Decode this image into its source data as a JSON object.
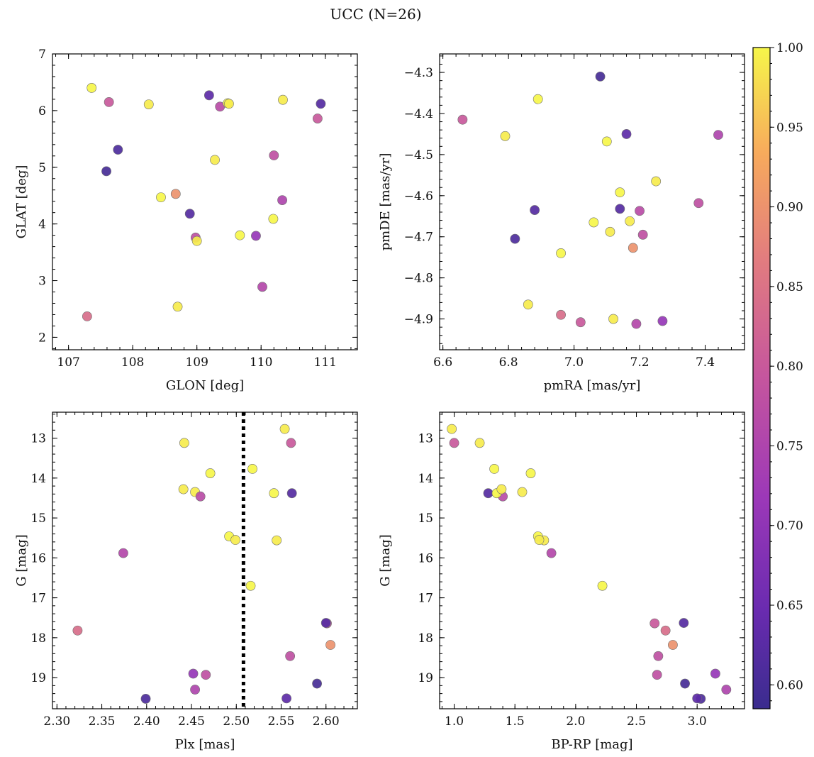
{
  "chart_data": {
    "title": "UCC (N=26)",
    "type": "scatter",
    "colorbar": {
      "range": [
        0.585,
        1.0
      ],
      "ticks": [
        0.6,
        0.65,
        0.7,
        0.75,
        0.8,
        0.85,
        0.9,
        0.95,
        1.0
      ],
      "tick_labels": [
        "0.60",
        "0.65",
        "0.70",
        "0.75",
        "0.80",
        "0.85",
        "0.90",
        "0.95",
        "1.00"
      ],
      "colormap": "plasma",
      "placement": "right"
    },
    "members": [
      {
        "glon": 107.36,
        "glat": 6.4,
        "pmra": 6.89,
        "pmde": -4.365,
        "plx": 2.518,
        "g": 13.77,
        "bprp": 1.33,
        "prob": 1.0
      },
      {
        "glon": 107.63,
        "glat": 6.15,
        "pmra": 6.66,
        "pmde": -4.415,
        "plx": 2.561,
        "g": 13.12,
        "bprp": 1.0,
        "prob": 0.8
      },
      {
        "glon": 107.59,
        "glat": 4.93,
        "pmra": 7.08,
        "pmde": -4.31,
        "plx": 2.59,
        "g": 19.15,
        "bprp": 2.9,
        "prob": 0.6
      },
      {
        "glon": 107.77,
        "glat": 5.31,
        "pmra": 6.82,
        "pmde": -4.705,
        "plx": 2.399,
        "g": 19.53,
        "bprp": 3.03,
        "prob": 0.61
      },
      {
        "glon": 107.29,
        "glat": 2.37,
        "pmra": 6.96,
        "pmde": -4.89,
        "plx": 2.323,
        "g": 17.82,
        "bprp": 2.74,
        "prob": 0.84
      },
      {
        "glon": 108.25,
        "glat": 6.11,
        "pmra": 6.79,
        "pmde": -4.455,
        "plx": 2.545,
        "g": 15.56,
        "bprp": 1.74,
        "prob": 0.99
      },
      {
        "glon": 108.44,
        "glat": 4.47,
        "pmra": 7.06,
        "pmde": -4.665,
        "plx": 2.492,
        "g": 15.46,
        "bprp": 1.69,
        "prob": 1.0
      },
      {
        "glon": 108.67,
        "glat": 4.53,
        "pmra": 7.18,
        "pmde": -4.727,
        "plx": 2.605,
        "g": 18.18,
        "bprp": 2.8,
        "prob": 0.9
      },
      {
        "glon": 108.7,
        "glat": 2.54,
        "pmra": 7.12,
        "pmde": -4.9,
        "plx": 2.442,
        "g": 13.12,
        "bprp": 1.21,
        "prob": 0.99
      },
      {
        "glon": 108.89,
        "glat": 4.18,
        "pmra": 6.88,
        "pmde": -4.635,
        "plx": 2.562,
        "g": 14.38,
        "bprp": 1.28,
        "prob": 0.62
      },
      {
        "glon": 108.98,
        "glat": 3.76,
        "pmra": 7.21,
        "pmde": -4.695,
        "plx": 2.466,
        "g": 18.93,
        "bprp": 2.67,
        "prob": 0.78
      },
      {
        "glon": 109.0,
        "glat": 3.7,
        "pmra": 7.25,
        "pmde": -4.565,
        "plx": 2.454,
        "g": 14.35,
        "bprp": 1.56,
        "prob": 0.99
      },
      {
        "glon": 109.19,
        "glat": 6.27,
        "pmra": 7.16,
        "pmde": -4.45,
        "plx": 2.556,
        "g": 19.52,
        "bprp": 3.0,
        "prob": 0.63
      },
      {
        "glon": 109.28,
        "glat": 5.13,
        "pmra": 6.86,
        "pmde": -4.865,
        "plx": 2.554,
        "g": 12.77,
        "bprp": 0.98,
        "prob": 0.99
      },
      {
        "glon": 109.36,
        "glat": 6.07,
        "pmra": 7.2,
        "pmde": -4.637,
        "plx": 2.46,
        "g": 14.46,
        "bprp": 1.4,
        "prob": 0.77
      },
      {
        "glon": 109.48,
        "glat": 6.13,
        "pmra": 7.14,
        "pmde": -4.592,
        "plx": 2.471,
        "g": 13.88,
        "bprp": 1.63,
        "prob": 1.0
      },
      {
        "glon": 109.5,
        "glat": 6.12,
        "pmra": 7.17,
        "pmde": -4.662,
        "plx": 2.499,
        "g": 15.55,
        "bprp": 1.7,
        "prob": 0.99
      },
      {
        "glon": 109.67,
        "glat": 3.8,
        "pmra": 6.96,
        "pmde": -4.74,
        "plx": 2.542,
        "g": 14.38,
        "bprp": 1.35,
        "prob": 1.0
      },
      {
        "glon": 109.92,
        "glat": 3.79,
        "pmra": 7.27,
        "pmde": -4.905,
        "plx": 2.452,
        "g": 18.9,
        "bprp": 3.15,
        "prob": 0.71
      },
      {
        "glon": 110.2,
        "glat": 5.21,
        "pmra": 7.38,
        "pmde": -4.618,
        "plx": 2.56,
        "g": 18.46,
        "bprp": 2.68,
        "prob": 0.78
      },
      {
        "glon": 110.19,
        "glat": 4.09,
        "pmra": 7.1,
        "pmde": -4.468,
        "plx": 2.516,
        "g": 16.7,
        "bprp": 2.22,
        "prob": 1.0
      },
      {
        "glon": 110.33,
        "glat": 4.42,
        "pmra": 7.44,
        "pmde": -4.452,
        "plx": 2.454,
        "g": 19.3,
        "bprp": 3.24,
        "prob": 0.75
      },
      {
        "glon": 110.34,
        "glat": 6.19,
        "pmra": 7.11,
        "pmde": -4.688,
        "plx": 2.441,
        "g": 14.28,
        "bprp": 1.39,
        "prob": 0.99
      },
      {
        "glon": 110.88,
        "glat": 5.86,
        "pmra": 7.02,
        "pmde": -4.908,
        "plx": 2.601,
        "g": 17.64,
        "bprp": 2.65,
        "prob": 0.8
      },
      {
        "glon": 110.93,
        "glat": 6.12,
        "pmra": 7.14,
        "pmde": -4.632,
        "plx": 2.6,
        "g": 17.63,
        "bprp": 2.89,
        "prob": 0.62
      },
      {
        "glon": 110.02,
        "glat": 2.89,
        "pmra": 7.19,
        "pmde": -4.912,
        "plx": 2.374,
        "g": 15.88,
        "bprp": 1.8,
        "prob": 0.76
      }
    ],
    "panels": [
      {
        "name": "glon-glat",
        "x": "glon",
        "y": "glat",
        "xlabel": "GLON [deg]",
        "ylabel": "GLAT [deg]",
        "xlim": [
          106.75,
          111.5
        ],
        "ylim": [
          1.78,
          7.0
        ],
        "y_inverted": false,
        "xticks": [
          107,
          108,
          109,
          110,
          111
        ],
        "xtick_labels": [
          "107",
          "108",
          "109",
          "110",
          "111"
        ],
        "yticks": [
          2,
          3,
          4,
          5,
          6,
          7
        ],
        "ytick_labels": [
          "2",
          "3",
          "4",
          "5",
          "6",
          "7"
        ],
        "xminor": 0.2,
        "yminor": 0.2
      },
      {
        "name": "pmra-pmde",
        "x": "pmra",
        "y": "pmde",
        "xlabel": "pmRA [mas/yr]",
        "ylabel": "pmDE [mas/yr]",
        "xlim": [
          6.59,
          7.52
        ],
        "ylim": [
          -4.975,
          -4.255
        ],
        "y_inverted": false,
        "xticks": [
          6.6,
          6.8,
          7.0,
          7.2,
          7.4
        ],
        "xtick_labels": [
          "6.6",
          "6.8",
          "7.0",
          "7.2",
          "7.4"
        ],
        "yticks": [
          -4.9,
          -4.8,
          -4.7,
          -4.6,
          -4.5,
          -4.4,
          -4.3
        ],
        "ytick_labels": [
          "−4.9",
          "−4.8",
          "−4.7",
          "−4.6",
          "−4.5",
          "−4.4",
          "−4.3"
        ],
        "xminor": 0.04,
        "yminor": 0.02
      },
      {
        "name": "plx-g",
        "x": "plx",
        "y": "g",
        "xlabel": "Plx [mas]",
        "ylabel": "G [mag]",
        "xlim": [
          2.295,
          2.635
        ],
        "ylim": [
          12.35,
          19.78
        ],
        "y_inverted": true,
        "xticks": [
          2.3,
          2.35,
          2.4,
          2.45,
          2.5,
          2.55,
          2.6
        ],
        "xtick_labels": [
          "2.30",
          "2.35",
          "2.40",
          "2.45",
          "2.50",
          "2.55",
          "2.60"
        ],
        "yticks": [
          13,
          14,
          15,
          16,
          17,
          18,
          19
        ],
        "ytick_labels": [
          "13",
          "14",
          "15",
          "16",
          "17",
          "18",
          "19"
        ],
        "xminor": 0.01,
        "yminor": 0.2,
        "vline": {
          "x": 2.508,
          "style": "dotted"
        }
      },
      {
        "name": "bprp-g",
        "x": "bprp",
        "y": "g",
        "xlabel": "BP-RP [mag]",
        "ylabel": "G [mag]",
        "xlim": [
          0.88,
          3.39
        ],
        "ylim": [
          12.35,
          19.78
        ],
        "y_inverted": true,
        "xticks": [
          1.0,
          1.5,
          2.0,
          2.5,
          3.0
        ],
        "xtick_labels": [
          "1.0",
          "1.5",
          "2.0",
          "2.5",
          "3.0"
        ],
        "yticks": [
          13,
          14,
          15,
          16,
          17,
          18,
          19
        ],
        "ytick_labels": [
          "13",
          "14",
          "15",
          "16",
          "17",
          "18",
          "19"
        ],
        "xminor": 0.1,
        "yminor": 0.2
      }
    ]
  }
}
